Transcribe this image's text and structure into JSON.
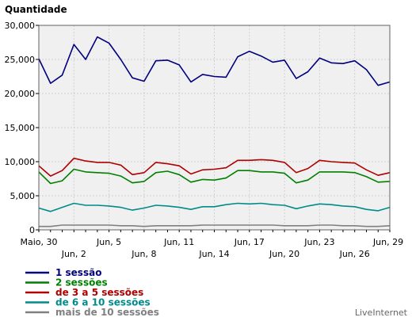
{
  "chart_data": {
    "type": "line",
    "ylabel": "Quantidade",
    "ylim": [
      0,
      30000
    ],
    "y_ticks": [
      "0",
      "5,000",
      "10,000",
      "15,000",
      "20,000",
      "25,000",
      "30,000"
    ],
    "y_tick_values": [
      0,
      5000,
      10000,
      15000,
      20000,
      25000,
      30000
    ],
    "x_tick_labels": [
      {
        "label": "Maio, 30",
        "day": 0,
        "row": 1
      },
      {
        "label": "Jun, 2",
        "day": 3,
        "row": 2
      },
      {
        "label": "Jun, 5",
        "day": 6,
        "row": 1
      },
      {
        "label": "Jun, 8",
        "day": 9,
        "row": 2
      },
      {
        "label": "Jun, 11",
        "day": 12,
        "row": 1
      },
      {
        "label": "Jun, 14",
        "day": 15,
        "row": 2
      },
      {
        "label": "Jun, 17",
        "day": 18,
        "row": 1
      },
      {
        "label": "Jun, 20",
        "day": 21,
        "row": 2
      },
      {
        "label": "Jun, 23",
        "day": 24,
        "row": 1
      },
      {
        "label": "Jun, 26",
        "day": 27,
        "row": 2
      },
      {
        "label": "Jun, 29",
        "day": 30,
        "row": 1
      }
    ],
    "x": [
      "Maio 30",
      "Maio 31",
      "Jun 1",
      "Jun 2",
      "Jun 3",
      "Jun 4",
      "Jun 5",
      "Jun 6",
      "Jun 7",
      "Jun 8",
      "Jun 9",
      "Jun 10",
      "Jun 11",
      "Jun 12",
      "Jun 13",
      "Jun 14",
      "Jun 15",
      "Jun 16",
      "Jun 17",
      "Jun 18",
      "Jun 19",
      "Jun 20",
      "Jun 21",
      "Jun 22",
      "Jun 23",
      "Jun 24",
      "Jun 25",
      "Jun 26",
      "Jun 27",
      "Jun 28",
      "Jun 29"
    ],
    "series": [
      {
        "name": "1 sessão",
        "color": "#000080",
        "values": [
          25100,
          21500,
          22700,
          27200,
          25000,
          28300,
          27400,
          25000,
          22300,
          21800,
          24800,
          24900,
          24200,
          21700,
          22800,
          22500,
          22400,
          25400,
          26200,
          25500,
          24600,
          24900,
          22200,
          23200,
          25200,
          24500,
          24400,
          24800,
          23500,
          21200,
          21700
        ]
      },
      {
        "name": "2 sessões",
        "color": "#008000",
        "values": [
          8500,
          6800,
          7200,
          8900,
          8500,
          8400,
          8300,
          7900,
          6900,
          7100,
          8400,
          8600,
          8100,
          7000,
          7400,
          7300,
          7600,
          8700,
          8700,
          8500,
          8500,
          8300,
          6900,
          7300,
          8500,
          8500,
          8500,
          8400,
          7800,
          7000,
          7100
        ]
      },
      {
        "name": "de 3 a 5 sessões",
        "color": "#b00000",
        "values": [
          9400,
          7900,
          8700,
          10500,
          10100,
          9900,
          9900,
          9500,
          8100,
          8400,
          9900,
          9700,
          9400,
          8200,
          8800,
          8900,
          9100,
          10200,
          10200,
          10300,
          10200,
          9900,
          8400,
          9000,
          10200,
          10000,
          9900,
          9800,
          8800,
          8000,
          8400
        ]
      },
      {
        "name": "de 6 a 10 sessões",
        "color": "#008b8b",
        "values": [
          3200,
          2700,
          3300,
          3900,
          3600,
          3600,
          3500,
          3300,
          2900,
          3200,
          3600,
          3500,
          3300,
          3000,
          3400,
          3400,
          3700,
          3900,
          3800,
          3900,
          3700,
          3600,
          3100,
          3500,
          3800,
          3700,
          3500,
          3400,
          3000,
          2800,
          3300
        ]
      },
      {
        "name": "mais de 10 sessões",
        "color": "#808080",
        "values": [
          500,
          500,
          700,
          700,
          700,
          700,
          700,
          600,
          600,
          500,
          600,
          600,
          600,
          600,
          700,
          700,
          700,
          700,
          700,
          700,
          700,
          600,
          600,
          600,
          700,
          700,
          600,
          600,
          500,
          500,
          600
        ]
      }
    ],
    "grid": true,
    "legend_position": "bottom-left"
  },
  "credit": "LiveInternet"
}
